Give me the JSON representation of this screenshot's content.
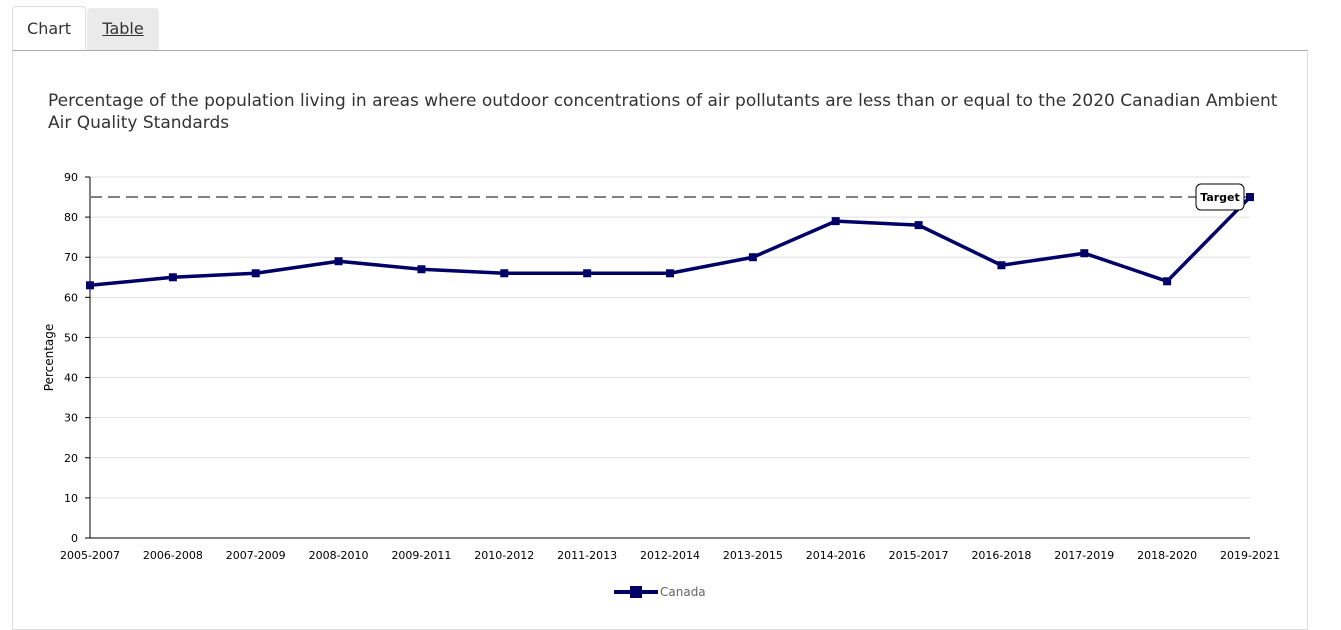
{
  "tabs": [
    {
      "label": "Chart",
      "active": true
    },
    {
      "label": "Table",
      "active": false
    }
  ],
  "colors": {
    "series": "#000066",
    "target": "#808080",
    "grid": "#e0e0e0"
  },
  "chart_data": {
    "type": "line",
    "title": "Percentage of the population living in areas where outdoor concentrations of air pollutants are less than or equal to the 2020 Canadian Ambient Air Quality Standards",
    "xlabel": "",
    "ylabel": "Percentage",
    "ylim": [
      0,
      90
    ],
    "yticks": [
      0,
      10,
      20,
      30,
      40,
      50,
      60,
      70,
      80,
      90
    ],
    "grid": true,
    "legend_position": "bottom",
    "categories": [
      "2005-2007",
      "2006-2008",
      "2007-2009",
      "2008-2010",
      "2009-2011",
      "2010-2012",
      "2011-2013",
      "2012-2014",
      "2013-2015",
      "2014-2016",
      "2015-2017",
      "2016-2018",
      "2017-2019",
      "2018-2020",
      "2019-2021"
    ],
    "series": [
      {
        "name": "Canada",
        "values": [
          63,
          65,
          66,
          69,
          67,
          66,
          66,
          66,
          70,
          79,
          78,
          68,
          71,
          64,
          85
        ]
      }
    ],
    "target": {
      "label": "Target",
      "value": 85
    }
  }
}
